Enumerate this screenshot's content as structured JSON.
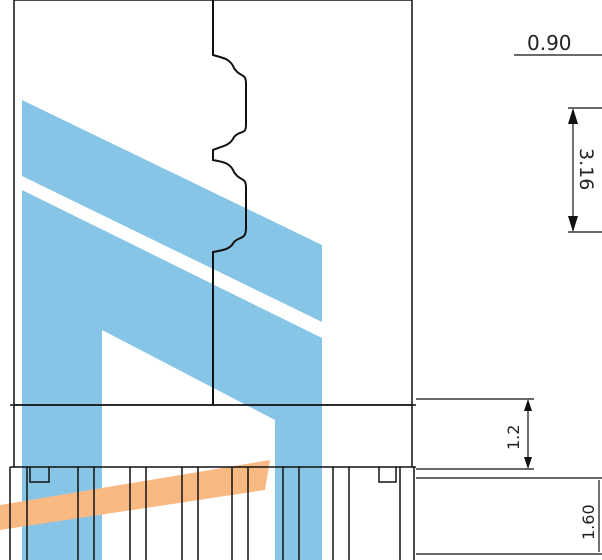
{
  "dimensions": {
    "top_width": "0.90",
    "slot_height": "3.16",
    "base_height": "1.2",
    "pin_length": "1.60"
  },
  "watermark": {
    "blue": "#5fb2e0",
    "orange": "#f6a25a"
  }
}
